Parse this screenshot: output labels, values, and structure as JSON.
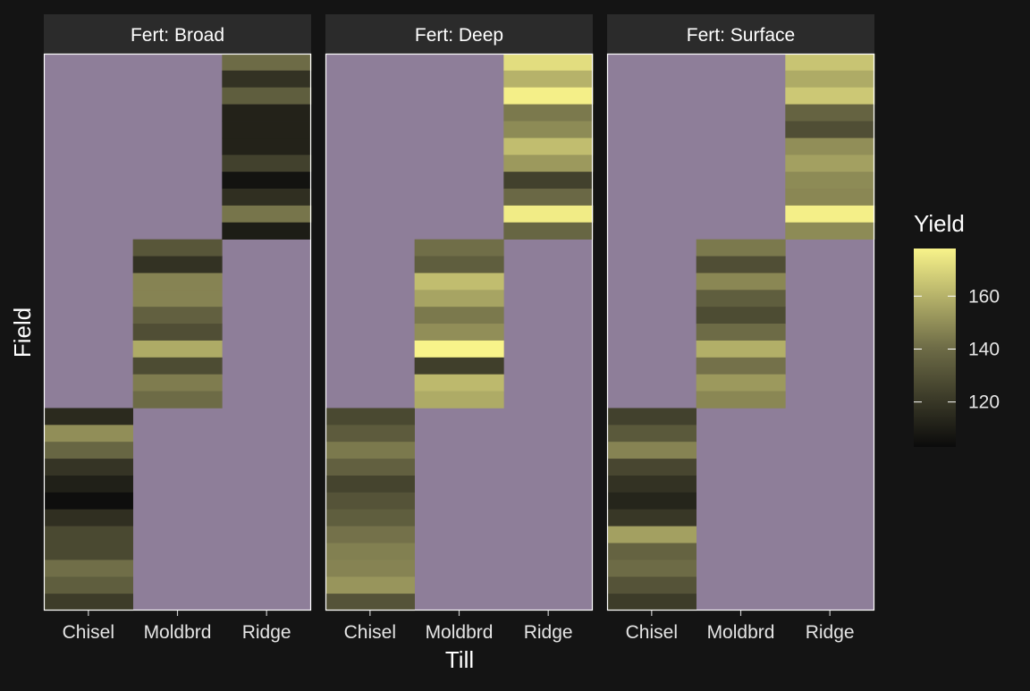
{
  "chart_data": {
    "type": "heatmap",
    "facet_prefix": "Fert: ",
    "facets": [
      "Broad",
      "Deep",
      "Surface"
    ],
    "facet_labels": [
      "Fert: Broad",
      "Fert: Deep",
      "Fert: Surface"
    ],
    "x_categories": [
      "Chisel",
      "Moldbrd",
      "Ridge"
    ],
    "xlabel": "Till",
    "ylabel": "Field",
    "legend_title": "Yield",
    "legend_position": "right",
    "legend_ticks": [
      120,
      140,
      160
    ],
    "color_range": [
      103,
      178
    ],
    "color_low": "#0b0b0b",
    "color_mid": "#6e6c47",
    "color_high": "#f8f38a",
    "na_color": "#8e7e99",
    "background": "#141414",
    "strip_color": "#2b2b2b",
    "text_color": "#ffffff",
    "tick_label_color": "#e5e5e5",
    "field_groups": {
      "Ridge": {
        "rows_from_top": [
          0,
          11
        ]
      },
      "Moldbrd": {
        "rows_from_top": [
          11,
          21
        ]
      },
      "Chisel": {
        "rows_from_top": [
          21,
          33
        ]
      }
    },
    "values": {
      "Broad": {
        "Ridge": [
          140,
          118,
          135,
          112,
          112,
          112,
          124,
          106,
          117,
          143,
          110
        ],
        "Moldbrd": [
          132,
          118,
          147,
          147,
          136,
          129,
          158,
          128,
          145,
          140
        ],
        "Chisel": [
          115,
          150,
          138,
          119,
          111,
          104,
          117,
          127,
          127,
          141,
          135,
          122
        ]
      },
      "Deep": {
        "Ridge": [
          172,
          160,
          177,
          144,
          149,
          163,
          153,
          124,
          139,
          176,
          138
        ],
        "Moldbrd": [
          141,
          135,
          163,
          156,
          144,
          150,
          178,
          123,
          162,
          158
        ],
        "Chisel": [
          127,
          134,
          144,
          136,
          125,
          131,
          135,
          142,
          146,
          147,
          152,
          131
        ]
      },
      "Surface": {
        "Ridge": [
          165,
          158,
          166,
          137,
          129,
          150,
          155,
          149,
          148,
          177,
          149
        ],
        "Moldbrd": [
          144,
          129,
          148,
          135,
          128,
          140,
          159,
          142,
          153,
          148
        ],
        "Chisel": [
          124,
          133,
          147,
          126,
          118,
          113,
          120,
          155,
          137,
          140,
          131,
          122
        ]
      }
    }
  }
}
